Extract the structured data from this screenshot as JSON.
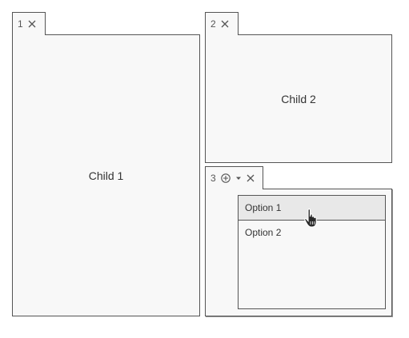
{
  "tabs": [
    {
      "number": "1",
      "close_icon": "close-icon"
    },
    {
      "number": "2",
      "close_icon": "close-icon"
    },
    {
      "number": "3",
      "add_icon": "add-circle-icon",
      "menu_icon": "caret-down-icon",
      "close_icon": "close-icon"
    }
  ],
  "panels": {
    "child1": "Child 1",
    "child2": "Child 2"
  },
  "dropdown": {
    "options": [
      "Option 1",
      "Option 2"
    ],
    "hovered_index": 0
  },
  "cursor": "hand-pointer-icon",
  "colors": {
    "border": "#555555",
    "panel_bg": "#f8f8f8",
    "hover_bg": "#e8e8e8"
  }
}
